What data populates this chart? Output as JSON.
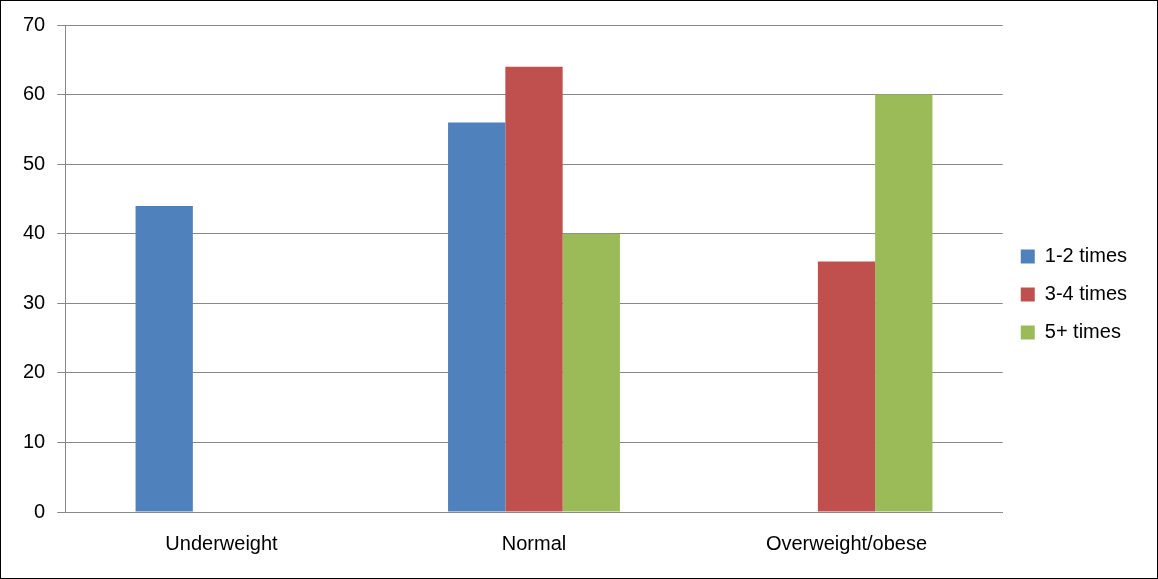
{
  "chart_data": {
    "type": "bar",
    "categories": [
      "Underweight",
      "Normal",
      "Overweight/obese"
    ],
    "series": [
      {
        "name": "1-2 times",
        "color": "#4f81bd",
        "values": [
          44,
          56,
          0
        ]
      },
      {
        "name": "3-4 times",
        "color": "#c0504d",
        "values": [
          0,
          64,
          36
        ]
      },
      {
        "name": "5+ times",
        "color": "#9bbb59",
        "values": [
          0,
          40,
          60
        ]
      }
    ],
    "ylim": [
      0,
      70
    ],
    "yticks": [
      0,
      10,
      20,
      30,
      40,
      50,
      60,
      70
    ],
    "grid": "y",
    "legend": "right"
  }
}
